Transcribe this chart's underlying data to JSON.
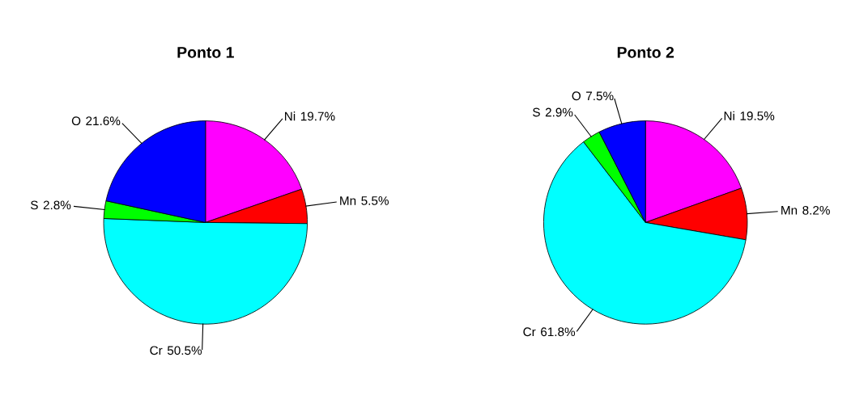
{
  "chart_data": [
    {
      "type": "pie",
      "title": "Ponto 1",
      "categories": [
        "Ni",
        "Mn",
        "Cr",
        "S",
        "O"
      ],
      "values": [
        19.7,
        5.5,
        50.5,
        2.8,
        21.6
      ],
      "colors": [
        "#ff00ff",
        "#ff0000",
        "#00ffff",
        "#00ff00",
        "#0000ff"
      ],
      "value_labels": [
        "19.7%",
        "5.5%",
        "50.5%",
        "2.8%",
        "21.6%"
      ]
    },
    {
      "type": "pie",
      "title": "Ponto 2",
      "categories": [
        "Ni",
        "Mn",
        "Cr",
        "S",
        "O"
      ],
      "values": [
        19.5,
        8.2,
        61.8,
        2.9,
        7.5
      ],
      "colors": [
        "#ff00ff",
        "#ff0000",
        "#00ffff",
        "#00ff00",
        "#0000ff"
      ],
      "value_labels": [
        "19.5%",
        "8.2%",
        "61.8%",
        "2.9%",
        "7.5%"
      ]
    }
  ]
}
